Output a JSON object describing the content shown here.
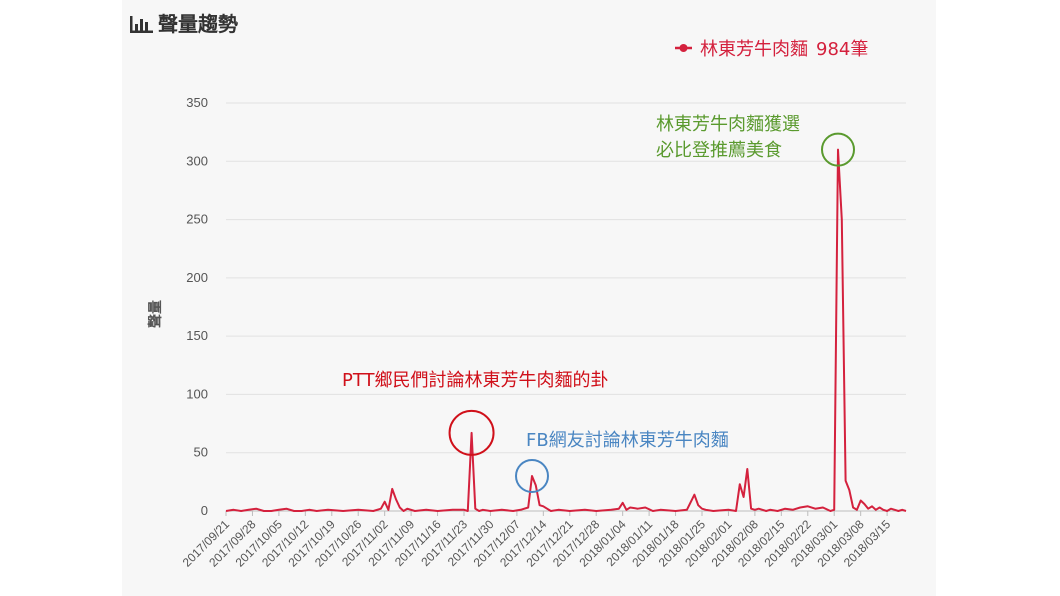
{
  "chart_data": {
    "type": "line",
    "title": "聲量趨勢",
    "ylabel": "聲量",
    "ylim": [
      0,
      350
    ],
    "yticks": [
      0,
      50,
      100,
      150,
      200,
      250,
      300,
      350
    ],
    "grid": true,
    "legend_position": "top-right",
    "xtick_labels": [
      "2017/09/21",
      "2017/09/28",
      "2017/10/05",
      "2017/10/12",
      "2017/10/19",
      "2017/10/26",
      "2017/11/02",
      "2017/11/09",
      "2017/11/16",
      "2017/11/23",
      "2017/11/30",
      "2017/12/07",
      "2017/12/14",
      "2017/12/21",
      "2017/12/28",
      "2018/01/04",
      "2018/01/11",
      "2018/01/18",
      "2018/01/25",
      "2018/02/01",
      "2018/02/08",
      "2018/02/15",
      "2018/02/22",
      "2018/03/01",
      "2018/03/08",
      "2018/03/15"
    ],
    "series": [
      {
        "name": "林東芳牛肉麵",
        "total_label": "984筆",
        "color": "#d4213d",
        "x": [
          "2017/09/21",
          "2017/09/23",
          "2017/09/25",
          "2017/09/27",
          "2017/09/29",
          "2017/10/01",
          "2017/10/03",
          "2017/10/05",
          "2017/10/07",
          "2017/10/09",
          "2017/10/11",
          "2017/10/13",
          "2017/10/15",
          "2017/10/18",
          "2017/10/22",
          "2017/10/26",
          "2017/10/30",
          "2017/11/01",
          "2017/11/02",
          "2017/11/03",
          "2017/11/04",
          "2017/11/05",
          "2017/11/06",
          "2017/11/07",
          "2017/11/08",
          "2017/11/10",
          "2017/11/13",
          "2017/11/16",
          "2017/11/20",
          "2017/11/23",
          "2017/11/24",
          "2017/11/25",
          "2017/11/26",
          "2017/11/27",
          "2017/11/28",
          "2017/11/30",
          "2017/12/03",
          "2017/12/06",
          "2017/12/08",
          "2017/12/10",
          "2017/12/11",
          "2017/12/12",
          "2017/12/13",
          "2017/12/14",
          "2017/12/15",
          "2017/12/16",
          "2017/12/18",
          "2017/12/21",
          "2017/12/25",
          "2017/12/28",
          "2018/01/01",
          "2018/01/03",
          "2018/01/04",
          "2018/01/05",
          "2018/01/06",
          "2018/01/08",
          "2018/01/10",
          "2018/01/12",
          "2018/01/14",
          "2018/01/18",
          "2018/01/21",
          "2018/01/23",
          "2018/01/24",
          "2018/01/25",
          "2018/01/26",
          "2018/01/28",
          "2018/02/01",
          "2018/02/03",
          "2018/02/04",
          "2018/02/05",
          "2018/02/06",
          "2018/02/07",
          "2018/02/08",
          "2018/02/09",
          "2018/02/10",
          "2018/02/11",
          "2018/02/12",
          "2018/02/14",
          "2018/02/16",
          "2018/02/18",
          "2018/02/20",
          "2018/02/22",
          "2018/02/24",
          "2018/02/26",
          "2018/02/28",
          "2018/03/01",
          "2018/03/02",
          "2018/03/03",
          "2018/03/04",
          "2018/03/05",
          "2018/03/06",
          "2018/03/07",
          "2018/03/08",
          "2018/03/09",
          "2018/03/10",
          "2018/03/11",
          "2018/03/12",
          "2018/03/13",
          "2018/03/14",
          "2018/03/15",
          "2018/03/16",
          "2018/03/17",
          "2018/03/18",
          "2018/03/19",
          "2018/03/20"
        ],
        "values": [
          0,
          1,
          0,
          1,
          2,
          0,
          0,
          1,
          2,
          0,
          0,
          1,
          0,
          1,
          0,
          1,
          0,
          2,
          8,
          1,
          19,
          10,
          3,
          0,
          2,
          0,
          1,
          0,
          1,
          1,
          0,
          67,
          2,
          0,
          1,
          0,
          1,
          0,
          1,
          3,
          30,
          22,
          5,
          4,
          2,
          0,
          1,
          0,
          1,
          0,
          1,
          2,
          7,
          1,
          3,
          2,
          3,
          0,
          1,
          0,
          1,
          14,
          5,
          2,
          1,
          0,
          1,
          0,
          23,
          12,
          36,
          2,
          1,
          2,
          1,
          0,
          1,
          0,
          2,
          1,
          3,
          4,
          2,
          3,
          0,
          1,
          310,
          250,
          26,
          18,
          3,
          1,
          9,
          6,
          2,
          4,
          1,
          3,
          1,
          0,
          2,
          1,
          0,
          1,
          0
        ]
      }
    ],
    "annotations": [
      {
        "text": "PTT鄉民們討論林東芳牛肉麵的卦",
        "color": "#d0101a",
        "x": "2017/11/25",
        "y": 67
      },
      {
        "text": "FB網友討論林東芳牛肉麵",
        "color": "#4a86c2",
        "x": "2017/12/11",
        "y": 30
      },
      {
        "lines": [
          "林東芳牛肉麵獲選",
          "必比登推薦美食"
        ],
        "color": "#5a9a2e",
        "x": "2018/03/02",
        "y": 310
      }
    ]
  }
}
